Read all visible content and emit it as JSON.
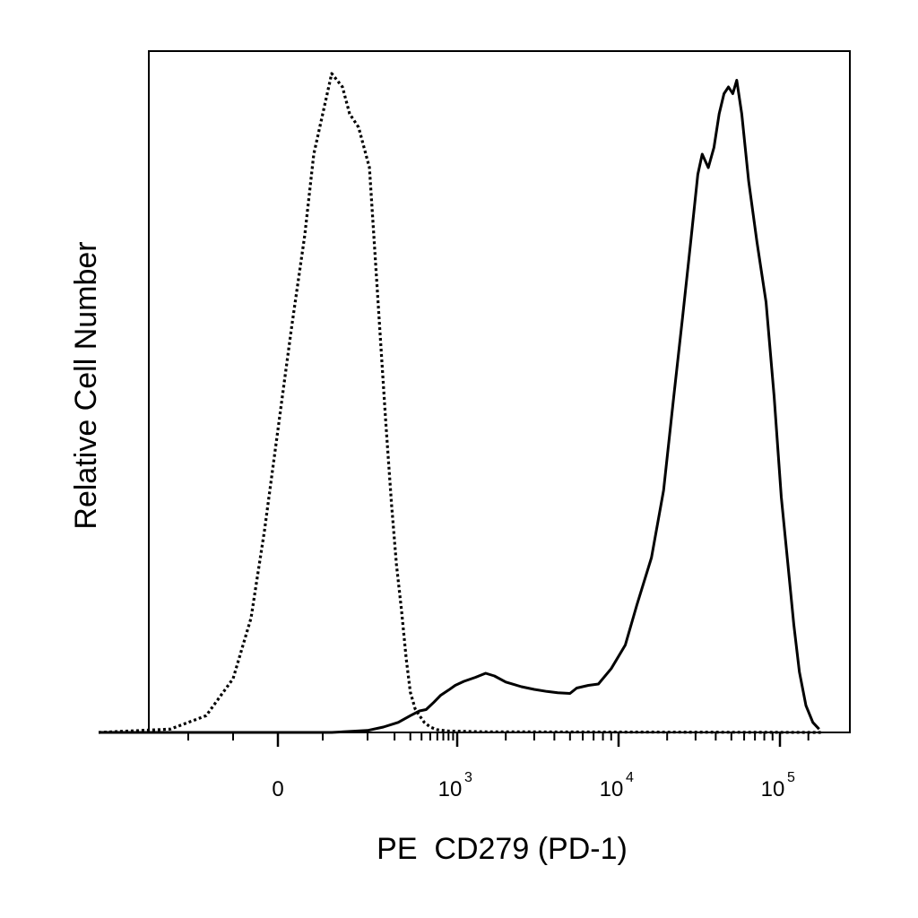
{
  "chart_data": {
    "type": "line",
    "title": "",
    "xlabel": "PE  CD279 (PD-1)",
    "ylabel": "Relative Cell Number",
    "x_scale": "biexponential",
    "xlim": [
      -200,
      180000
    ],
    "ylim": [
      0,
      100
    ],
    "grid": false,
    "legend": "none",
    "x_tick_labels": [
      {
        "value": 0,
        "base": "0",
        "exp": ""
      },
      {
        "value": 1000,
        "base": "10",
        "exp": "3"
      },
      {
        "value": 10000,
        "base": "10",
        "exp": "4"
      },
      {
        "value": 100000,
        "base": "10",
        "exp": "5"
      }
    ],
    "series": [
      {
        "style": "dotted",
        "color": "#000000",
        "points": [
          [
            -200,
            0
          ],
          [
            -120,
            0.5
          ],
          [
            -80,
            2.5
          ],
          [
            -50,
            8
          ],
          [
            -30,
            17
          ],
          [
            -15,
            30
          ],
          [
            0,
            45
          ],
          [
            15,
            60
          ],
          [
            30,
            74
          ],
          [
            40,
            86
          ],
          [
            50,
            92
          ],
          [
            60,
            98
          ],
          [
            72,
            96
          ],
          [
            80,
            92
          ],
          [
            90,
            90
          ],
          [
            105,
            84
          ],
          [
            120,
            72
          ],
          [
            140,
            58
          ],
          [
            160,
            46
          ],
          [
            185,
            34
          ],
          [
            210,
            25
          ],
          [
            240,
            18
          ],
          [
            270,
            11
          ],
          [
            300,
            6
          ],
          [
            340,
            3.5
          ],
          [
            380,
            2.5
          ],
          [
            430,
            1.5
          ],
          [
            500,
            0.8
          ],
          [
            600,
            0.4
          ],
          [
            800,
            0.2
          ],
          [
            1500,
            0.1
          ],
          [
            180000,
            0
          ]
        ]
      },
      {
        "style": "solid",
        "color": "#000000",
        "points": [
          [
            -200,
            0
          ],
          [
            60,
            0
          ],
          [
            100,
            0.3
          ],
          [
            150,
            0.8
          ],
          [
            220,
            1.5
          ],
          [
            300,
            2.5
          ],
          [
            380,
            3.2
          ],
          [
            450,
            3.4
          ],
          [
            550,
            4.5
          ],
          [
            650,
            5.5
          ],
          [
            800,
            6.3
          ],
          [
            950,
            7
          ],
          [
            1100,
            7.6
          ],
          [
            1300,
            8.2
          ],
          [
            1500,
            8.8
          ],
          [
            1700,
            8.4
          ],
          [
            2000,
            7.5
          ],
          [
            2500,
            6.8
          ],
          [
            3000,
            6.4
          ],
          [
            3600,
            6.1
          ],
          [
            4200,
            5.9
          ],
          [
            5000,
            5.8
          ],
          [
            5500,
            6.6
          ],
          [
            6500,
            7
          ],
          [
            7500,
            7.2
          ],
          [
            9000,
            9.5
          ],
          [
            11000,
            13
          ],
          [
            13000,
            19
          ],
          [
            16000,
            26
          ],
          [
            19000,
            36
          ],
          [
            22000,
            50
          ],
          [
            25000,
            62
          ],
          [
            28000,
            73
          ],
          [
            31000,
            83
          ],
          [
            33000,
            86
          ],
          [
            36000,
            84
          ],
          [
            39000,
            87
          ],
          [
            42000,
            92
          ],
          [
            45000,
            95
          ],
          [
            48000,
            96
          ],
          [
            51000,
            95
          ],
          [
            54000,
            97
          ],
          [
            58000,
            92
          ],
          [
            64000,
            82
          ],
          [
            72000,
            73
          ],
          [
            82000,
            64
          ],
          [
            92000,
            50
          ],
          [
            102000,
            35
          ],
          [
            112000,
            25
          ],
          [
            122000,
            16
          ],
          [
            132000,
            9
          ],
          [
            145000,
            4
          ],
          [
            160000,
            1.5
          ],
          [
            175000,
            0.5
          ]
        ]
      }
    ]
  }
}
